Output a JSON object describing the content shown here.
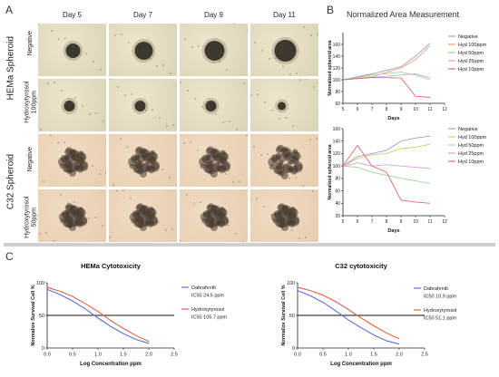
{
  "panels": {
    "a": "A",
    "b": "B",
    "c": "C"
  },
  "panel_a": {
    "columns": [
      "Day 5",
      "Day 7",
      "Day 9",
      "Day 11"
    ],
    "groups": [
      {
        "label": "HEMa Spheroid",
        "rows": [
          "Negative",
          "Hydroxytyrosol 100ppm"
        ]
      },
      {
        "label": "C32 Spheroid",
        "rows": [
          "Negative",
          "Hydroxytyrosol 50ppm"
        ]
      }
    ]
  },
  "panel_b_title": "Normalized Area Measurement",
  "chart_data": [
    {
      "type": "line",
      "title": "",
      "xlabel": "Days",
      "ylabel": "Normalized spheroid area",
      "xlim": [
        5,
        12
      ],
      "ylim": [
        60,
        180
      ],
      "xticks": [
        5,
        6,
        7,
        8,
        9,
        10,
        11,
        12
      ],
      "yticks": [
        60,
        80,
        100,
        120,
        140,
        160
      ],
      "x": [
        5,
        7,
        9,
        10,
        11
      ],
      "legend_position": "right",
      "series": [
        {
          "name": "Negative",
          "color": "#9a9fc8",
          "values": [
            100,
            110,
            122,
            140,
            162
          ]
        },
        {
          "name": "Hyd 100ppm",
          "color": "#e8a07a",
          "values": [
            100,
            105,
            120,
            134,
            158
          ]
        },
        {
          "name": "Hyd 50ppm",
          "color": "#9ad79a",
          "values": [
            100,
            108,
            113,
            108,
            100
          ]
        },
        {
          "name": "Hyd 25ppm",
          "color": "#d9a0d9",
          "values": [
            100,
            104,
            108,
            110,
            103
          ]
        },
        {
          "name": "Hyd 10ppm",
          "color": "#e06a6a",
          "values": [
            100,
            104,
            103,
            72,
            70
          ]
        }
      ]
    },
    {
      "type": "line",
      "title": "",
      "xlabel": "Days",
      "ylabel": "Normalized spheroid area",
      "xlim": [
        5,
        12
      ],
      "ylim": [
        20,
        160
      ],
      "xticks": [
        5,
        6,
        7,
        8,
        9,
        10,
        11,
        12
      ],
      "yticks": [
        20,
        40,
        60,
        80,
        100,
        120,
        140,
        160
      ],
      "x": [
        5,
        6,
        7,
        8,
        9,
        10,
        11
      ],
      "legend_position": "right",
      "series": [
        {
          "name": "Negative",
          "color": "#9a9fc8",
          "values": [
            100,
            115,
            120,
            125,
            140,
            145,
            148
          ]
        },
        {
          "name": "Hyd 100ppm",
          "color": "#e8c06a",
          "values": [
            100,
            112,
            118,
            120,
            128,
            130,
            135
          ]
        },
        {
          "name": "Hyd 50ppm",
          "color": "#9ad79a",
          "values": [
            100,
            98,
            90,
            85,
            80,
            76,
            72
          ]
        },
        {
          "name": "Hyd 25ppm",
          "color": "#d9a0d9",
          "values": [
            100,
            105,
            100,
            102,
            100,
            98,
            96
          ]
        },
        {
          "name": "Hyd 10ppm",
          "color": "#e06a6a",
          "values": [
            100,
            133,
            100,
            90,
            45,
            42,
            40
          ]
        }
      ]
    },
    {
      "type": "line",
      "title": "HEMa Cytotoxicity",
      "xlabel": "Log Concentration ppm",
      "ylabel": "Normalize Survival Cell %",
      "xlim": [
        0,
        2.5
      ],
      "ylim": [
        0,
        100
      ],
      "xticks": [
        "0.0",
        "0.5",
        "1.0",
        "1.5",
        "2.0",
        "2.5"
      ],
      "yticks": [
        0,
        50,
        100
      ],
      "threshold": 50,
      "x": [
        0,
        0.25,
        0.5,
        0.75,
        1.0,
        1.25,
        1.5,
        1.75,
        2.0
      ],
      "legend_position": "right",
      "series": [
        {
          "name": "Dabrafenib",
          "note": "IC50 24.5 ppm",
          "color": "#5b6fd8",
          "values": [
            90,
            82,
            72,
            60,
            46,
            33,
            22,
            13,
            7
          ]
        },
        {
          "name": "Hydroxytyrosol",
          "note": "IC50 105.7 ppm",
          "color": "#e0604a",
          "values": [
            93,
            87,
            79,
            68,
            56,
            42,
            30,
            19,
            10
          ]
        }
      ]
    },
    {
      "type": "line",
      "title": "C32 cytotoxicity",
      "xlabel": "Log Concentration ppm",
      "ylabel": "Normalize Survival Cell %",
      "xlim": [
        0,
        2.5
      ],
      "ylim": [
        0,
        100
      ],
      "xticks": [
        "0.0",
        "0.5",
        "1.0",
        "1.5",
        "2.0",
        "2.5"
      ],
      "yticks": [
        0,
        50,
        100
      ],
      "threshold": 50,
      "x": [
        0,
        0.25,
        0.5,
        0.75,
        1.0,
        1.25,
        1.5,
        1.75,
        2.0
      ],
      "legend_position": "right",
      "series": [
        {
          "name": "Dabrafenib",
          "note": "IC50 10.9 ppm",
          "color": "#5b6fd8",
          "values": [
            88,
            80,
            70,
            57,
            43,
            31,
            20,
            11,
            6
          ]
        },
        {
          "name": "Hydroxytyrosol",
          "note": "IC50 51.1 ppm",
          "color": "#e0604a",
          "values": [
            93,
            88,
            81,
            71,
            59,
            46,
            34,
            23,
            14
          ]
        }
      ]
    }
  ]
}
